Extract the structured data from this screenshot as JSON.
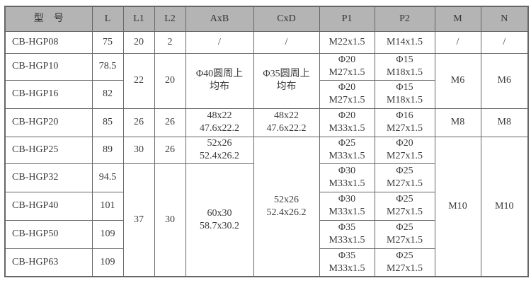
{
  "table": {
    "headers": [
      "型　号",
      "L",
      "L1",
      "L2",
      "AxB",
      "CxD",
      "P1",
      "P2",
      "M",
      "N"
    ],
    "rows": [
      {
        "model": "CB-HGP08",
        "L": "75",
        "L1": "20",
        "L2": "2",
        "AxB": [
          "/"
        ],
        "CxD": [
          "/"
        ],
        "P1": [
          "M22x1.5"
        ],
        "P2": [
          "M14x1.5"
        ],
        "M": "/",
        "N": "/"
      },
      {
        "model": "CB-HGP10",
        "L": "78.5",
        "L1": "22",
        "L2": "20",
        "AxB": [
          "Φ40圆周上",
          "均布"
        ],
        "CxD": [
          "Φ35圆周上",
          "均布"
        ],
        "P1": [
          "Φ20",
          "M27x1.5"
        ],
        "P2": [
          "Φ15",
          "M18x1.5"
        ],
        "M": "M6",
        "N": "M6"
      },
      {
        "model": "CB-HGP16",
        "L": "82",
        "P1": [
          "Φ20",
          "M27x1.5"
        ],
        "P2": [
          "Φ15",
          "M18x1.5"
        ]
      },
      {
        "model": "CB-HGP20",
        "L": "85",
        "L1": "26",
        "L2": "26",
        "AxB": [
          "48x22",
          "47.6x22.2"
        ],
        "CxD": [
          "48x22",
          "47.6x22.2"
        ],
        "P1": [
          "Φ20",
          "M33x1.5"
        ],
        "P2": [
          "Φ16",
          "M27x1.5"
        ],
        "M": "M8",
        "N": "M8"
      },
      {
        "model": "CB-HGP25",
        "L": "89",
        "L1": "30",
        "L2": "26",
        "AxB": [
          "52x26",
          "52.4x26.2"
        ],
        "CxD": [
          "52x26",
          "52.4x26.2"
        ],
        "P1": [
          "Φ25",
          "M33x1.5"
        ],
        "P2": [
          "Φ20",
          "M27x1.5"
        ],
        "M": "M10",
        "N": "M10"
      },
      {
        "model": "CB-HGP32",
        "L": "94.5",
        "L1": "37",
        "L2": "30",
        "AxB": [
          "60x30",
          "58.7x30.2"
        ],
        "P1": [
          "Φ30",
          "M33x1.5"
        ],
        "P2": [
          "Φ25",
          "M27x1.5"
        ]
      },
      {
        "model": "CB-HGP40",
        "L": "101",
        "P1": [
          "Φ30",
          "M33x1.5"
        ],
        "P2": [
          "Φ25",
          "M27x1.5"
        ]
      },
      {
        "model": "CB-HGP50",
        "L": "109",
        "P1": [
          "Φ35",
          "M33x1.5"
        ],
        "P2": [
          "Φ25",
          "M27x1.5"
        ]
      },
      {
        "model": "CB-HGP63",
        "L": "109",
        "P1": [
          "Φ35",
          "M33x1.5"
        ],
        "P2": [
          "Φ25",
          "M27x1.5"
        ]
      }
    ]
  },
  "colors": {
    "header_bg": "#b4b4b4",
    "border": "#666666",
    "text": "#3a3a3a"
  }
}
